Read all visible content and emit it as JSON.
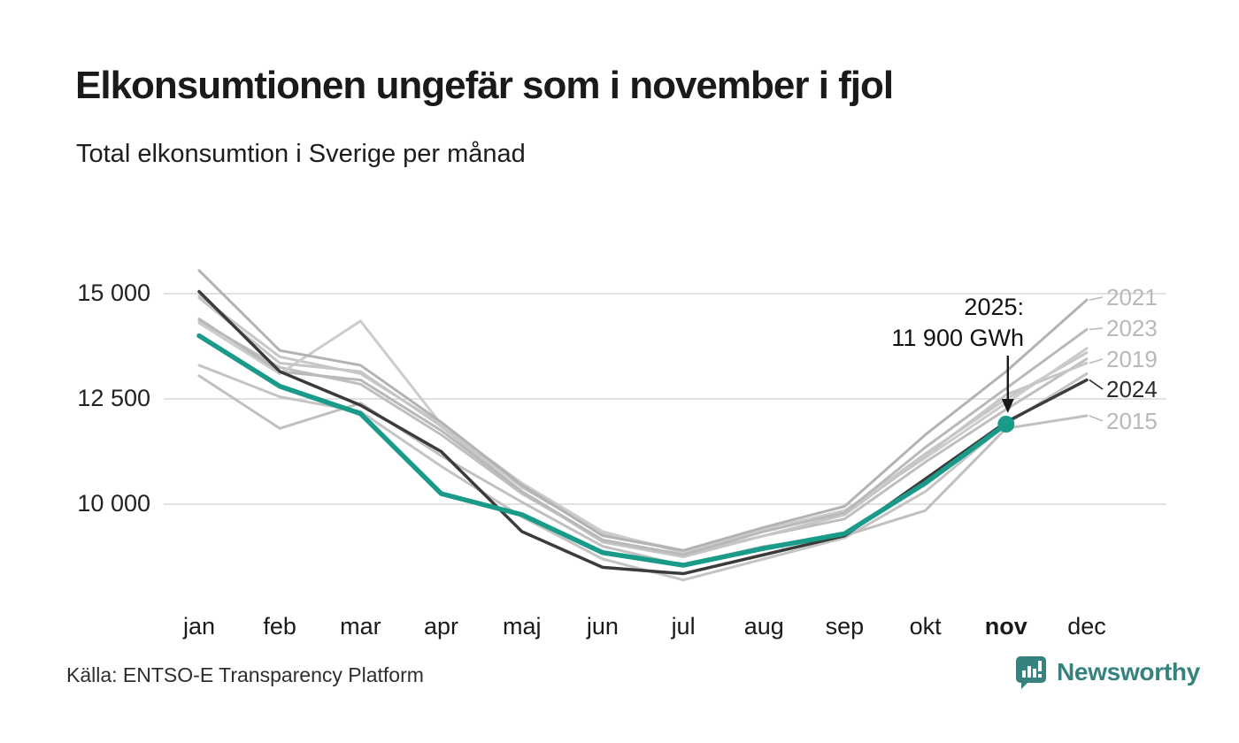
{
  "header": {
    "title": "Elkonsumtionen ungefär som i november i fjol",
    "subtitle": "Total elkonsumtion i Sverige per månad"
  },
  "footer": {
    "source": "Källa: ENTSO-E Transparency Platform",
    "brand": "Newsworthy"
  },
  "annotation": {
    "line1": "2025:",
    "line2": "11 900 GWh"
  },
  "colors": {
    "accent_teal": "#1a9a89",
    "line_2024": "#3b3b3b",
    "grid": "#e2e2e2",
    "label_gray": "#b9b9b9",
    "label_dark": "#2b2b2b",
    "arrow": "#1a1a1a",
    "logo_teal": "#35827e"
  },
  "chart_data": {
    "type": "line",
    "title": "Elkonsumtionen ungefär som i november i fjol",
    "subtitle": "Total elkonsumtion i Sverige per månad",
    "unit": "GWh",
    "categories": [
      "jan",
      "feb",
      "mar",
      "apr",
      "maj",
      "jun",
      "jul",
      "aug",
      "sep",
      "okt",
      "nov",
      "dec"
    ],
    "highlight_month": "nov",
    "y_ticks": [
      {
        "text": "15 000",
        "value": 15000
      },
      {
        "text": "12 500",
        "value": 12500
      },
      {
        "text": "10 000",
        "value": 10000
      }
    ],
    "ylim": [
      8000,
      15800
    ],
    "grid": true,
    "legend_position": "right-edge-labels",
    "highlight_point": {
      "series": "2025",
      "month": "nov",
      "value": 11900
    },
    "series": [
      {
        "label": "",
        "color": "#c7c7c7",
        "role": "context",
        "values": [
          14950,
          13500,
          13100,
          11900,
          10400,
          9300,
          8900,
          9400,
          9800,
          11200,
          12500,
          13600
        ]
      },
      {
        "label": "",
        "color": "#bfbfbf",
        "role": "context",
        "values": [
          14350,
          13250,
          12850,
          11650,
          10250,
          9150,
          8800,
          9250,
          9650,
          11000,
          12250,
          13450
        ]
      },
      {
        "label": "",
        "color": "#cccccc",
        "role": "context",
        "values": [
          14300,
          13100,
          14350,
          11900,
          10500,
          9350,
          8850,
          9400,
          9850,
          11100,
          12400,
          13700
        ]
      },
      {
        "label": "",
        "color": "#c4c4c4",
        "role": "context",
        "values": [
          13300,
          12550,
          12200,
          10900,
          9700,
          8700,
          8200,
          8700,
          9200,
          10300,
          11900,
          13100
        ]
      },
      {
        "label": "2015",
        "color": "#c0c0c0",
        "role": "context",
        "values": [
          13050,
          11800,
          12400,
          11150,
          10050,
          9000,
          8550,
          9000,
          9250,
          9850,
          11800,
          12100
        ]
      },
      {
        "label": "2019",
        "color": "#c6c6c6",
        "role": "context",
        "values": [
          14900,
          13350,
          13150,
          11850,
          10300,
          9100,
          8750,
          9250,
          9750,
          11150,
          12600,
          13350
        ]
      },
      {
        "label": "2021",
        "color": "#b3b3b3",
        "role": "context",
        "values": [
          15550,
          13650,
          13300,
          11950,
          10450,
          9250,
          8900,
          9450,
          9950,
          11650,
          13150,
          14850
        ]
      },
      {
        "label": "2023",
        "color": "#b9b9b9",
        "role": "context",
        "values": [
          14400,
          13150,
          12950,
          11750,
          10300,
          9150,
          8800,
          9350,
          9800,
          11350,
          12750,
          14150
        ]
      },
      {
        "label": "2024",
        "color": "#3b3b3b",
        "role": "previous-year",
        "values": [
          15050,
          13150,
          12350,
          11250,
          9350,
          8500,
          8350,
          8800,
          9250,
          10600,
          11950,
          12950
        ]
      },
      {
        "label": "2025",
        "color": "#1a9a89",
        "role": "current-year",
        "values": [
          14000,
          12800,
          12150,
          10250,
          9750,
          8850,
          8550,
          8950,
          9300,
          10500,
          11900,
          null
        ]
      }
    ],
    "right_labels": [
      {
        "text": "2021",
        "dark": false
      },
      {
        "text": "2023",
        "dark": false
      },
      {
        "text": "2019",
        "dark": false
      },
      {
        "text": "2024",
        "dark": true
      },
      {
        "text": "2015",
        "dark": false
      }
    ]
  }
}
